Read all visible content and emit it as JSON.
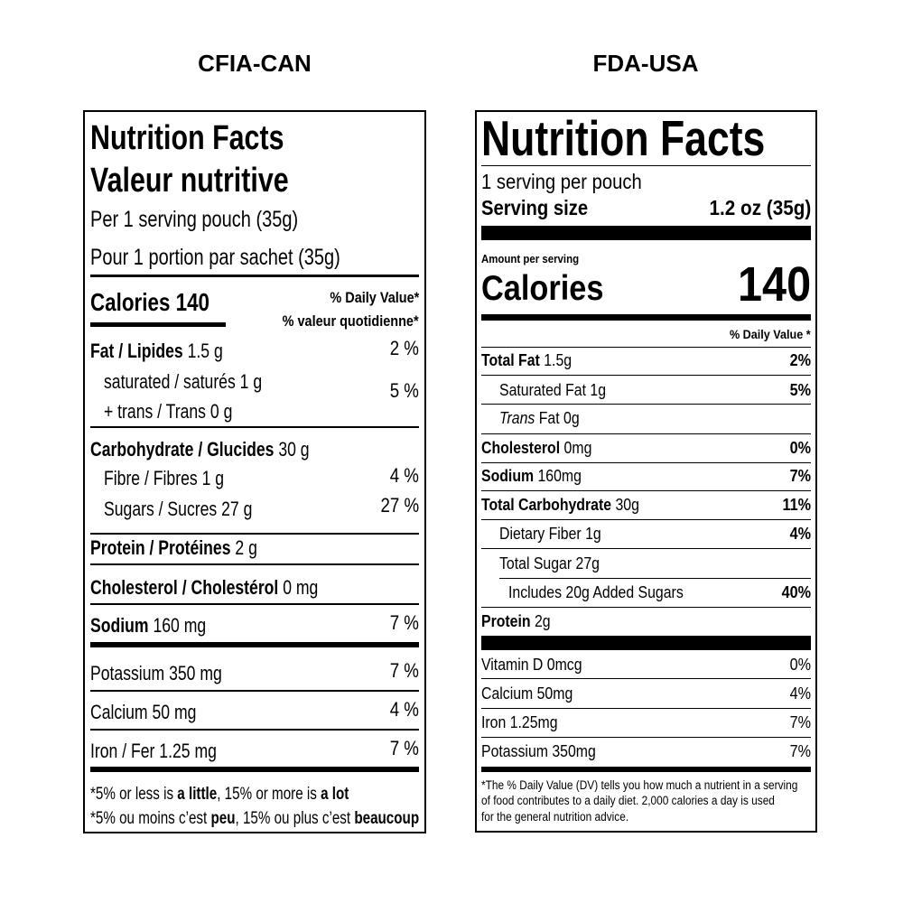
{
  "headings": {
    "can": "CFIA-CAN",
    "usa": "FDA-USA"
  },
  "can": {
    "title": "Nutrition Facts",
    "title_fr": "Valeur nutritive",
    "serving": "Per 1 serving pouch (35g)",
    "serving_fr": "Pour 1 portion par sachet (35g)",
    "calories": "Calories 140",
    "dv_header": "% Daily Value*",
    "dv_header_fr": "% valeur quotidienne*",
    "rows": [
      {
        "name": "Fat / Lipides",
        "amount": "1.5 g",
        "dv": "2 %"
      },
      {
        "name": "saturated / saturés",
        "amount": "1 g",
        "dv": "5 %"
      },
      {
        "name": "+ trans / Trans",
        "amount": "0 g"
      },
      {
        "name": "Carbohydrate / Glucides",
        "amount": "30 g"
      },
      {
        "name": "Fibre / Fibres",
        "amount": "1 g",
        "dv": "4 %"
      },
      {
        "name": "Sugars / Sucres",
        "amount": "27 g",
        "dv": "27 %"
      },
      {
        "name": "Protein / Protéines",
        "amount": "2 g"
      },
      {
        "name": "Cholesterol / Cholestérol",
        "amount": "0 mg"
      },
      {
        "name": "Sodium",
        "amount": "160 mg",
        "dv": "7 %"
      },
      {
        "name": "Potassium",
        "amount": "350 mg",
        "dv": "7 %"
      },
      {
        "name": "Calcium",
        "amount": "50 mg",
        "dv": "4 %"
      },
      {
        "name": "Iron / Fer",
        "amount": "1.25 mg",
        "dv": "7 %"
      }
    ],
    "footnote": [
      [
        "*5% or less is ",
        "a little",
        ", 15% or more is ",
        "a lot"
      ],
      [
        "*5% ou moins c’est ",
        "peu",
        ", 15% ou plus c’est ",
        "beaucoup"
      ]
    ]
  },
  "usa": {
    "title": "Nutrition Facts",
    "servings": "1 serving per pouch",
    "serving_size_label": "Serving size",
    "serving_size": "1.2 oz (35g)",
    "amount_per_serving": "Amount per serving",
    "calories_label": "Calories",
    "calories": "140",
    "dv_header": "% Daily Value *",
    "rows": [
      {
        "name": "Total Fat",
        "amount": "1.5g",
        "dv": "2%"
      },
      {
        "name": "Saturated Fat",
        "amount": "1g",
        "dv": "5%"
      },
      {
        "name": "Trans",
        "name_rest": "Fat",
        "amount": "0g"
      },
      {
        "name": "Cholesterol",
        "amount": "0mg",
        "dv": "0%"
      },
      {
        "name": "Sodium",
        "amount": "160mg",
        "dv": "7%"
      },
      {
        "name": "Total Carbohydrate",
        "amount": "30g",
        "dv": "11%"
      },
      {
        "name": "Dietary Fiber",
        "amount": "1g",
        "dv": "4%"
      },
      {
        "name": "Total Sugar",
        "amount": "27g"
      },
      {
        "name": "Includes 20g Added Sugars",
        "dv": "40%"
      },
      {
        "name": "Protein",
        "amount": "2g"
      },
      {
        "name": "Vitamin D",
        "amount": "0mcg",
        "dv": "0%"
      },
      {
        "name": "Calcium",
        "amount": "50mg",
        "dv": "4%"
      },
      {
        "name": "Iron",
        "amount": "1.25mg",
        "dv": "7%"
      },
      {
        "name": "Potassium",
        "amount": "350mg",
        "dv": "7%"
      }
    ],
    "footnote": [
      "*The % Daily Value (DV) tells you how much a nutrient in a serving",
      "of food contributes to a daily diet. 2,000 calories a day is used",
      "for the general nutrition advice."
    ]
  }
}
